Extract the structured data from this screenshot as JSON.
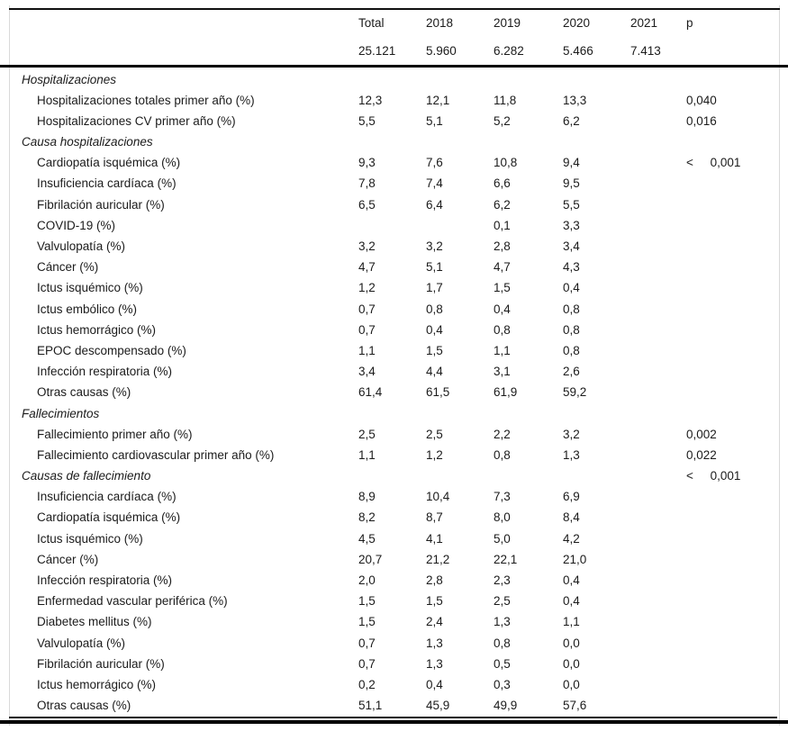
{
  "header": {
    "columns": [
      "Total",
      "2018",
      "2019",
      "2020",
      "2021",
      "p"
    ],
    "counts": [
      "25.121",
      "5.960",
      "6.282",
      "5.466",
      "7.413"
    ]
  },
  "rows": [
    {
      "type": "section",
      "label": "Hospitalizaciones",
      "values": [
        "",
        "",
        "",
        "",
        ""
      ],
      "p": ""
    },
    {
      "type": "item",
      "label": "Hospitalizaciones totales primer año (%)",
      "values": [
        "12,3",
        "12,1",
        "11,8",
        "13,3",
        ""
      ],
      "p": "0,040"
    },
    {
      "type": "item",
      "label": "Hospitalizaciones CV primer año (%)",
      "values": [
        "5,5",
        "5,1",
        "5,2",
        "6,2",
        ""
      ],
      "p": "0,016"
    },
    {
      "type": "section",
      "label": "Causa hospitalizaciones",
      "values": [
        "",
        "",
        "",
        "",
        ""
      ],
      "p": ""
    },
    {
      "type": "item",
      "label": "Cardiopatía isquémica (%)",
      "values": [
        "9,3",
        "7,6",
        "10,8",
        "9,4",
        ""
      ],
      "p": "<     0,001"
    },
    {
      "type": "item",
      "label": "Insuficiencia cardíaca (%)",
      "values": [
        "7,8",
        "7,4",
        "6,6",
        "9,5",
        ""
      ],
      "p": ""
    },
    {
      "type": "item",
      "label": "Fibrilación auricular (%)",
      "values": [
        "6,5",
        "6,4",
        "6,2",
        "5,5",
        ""
      ],
      "p": ""
    },
    {
      "type": "item",
      "label": "COVID-19 (%)",
      "values": [
        "",
        "",
        "0,1",
        "3,3",
        ""
      ],
      "p": ""
    },
    {
      "type": "item",
      "label": "Valvulopatía (%)",
      "values": [
        "3,2",
        "3,2",
        "2,8",
        "3,4",
        ""
      ],
      "p": ""
    },
    {
      "type": "item",
      "label": "Cáncer (%)",
      "values": [
        "4,7",
        "5,1",
        "4,7",
        "4,3",
        ""
      ],
      "p": ""
    },
    {
      "type": "item",
      "label": "Ictus isquémico (%)",
      "values": [
        "1,2",
        "1,7",
        "1,5",
        "0,4",
        ""
      ],
      "p": ""
    },
    {
      "type": "item",
      "label": "Ictus embólico (%)",
      "values": [
        "0,7",
        "0,8",
        "0,4",
        "0,8",
        ""
      ],
      "p": ""
    },
    {
      "type": "item",
      "label": "Ictus hemorrágico (%)",
      "values": [
        "0,7",
        "0,4",
        "0,8",
        "0,8",
        ""
      ],
      "p": ""
    },
    {
      "type": "item",
      "label": "EPOC descompensado (%)",
      "values": [
        "1,1",
        "1,5",
        "1,1",
        "0,8",
        ""
      ],
      "p": ""
    },
    {
      "type": "item",
      "label": "Infección respiratoria (%)",
      "values": [
        "3,4",
        "4,4",
        "3,1",
        "2,6",
        ""
      ],
      "p": ""
    },
    {
      "type": "item",
      "label": "Otras causas (%)",
      "values": [
        "61,4",
        "61,5",
        "61,9",
        "59,2",
        ""
      ],
      "p": ""
    },
    {
      "type": "section",
      "label": "Fallecimientos",
      "values": [
        "",
        "",
        "",
        "",
        ""
      ],
      "p": ""
    },
    {
      "type": "item",
      "label": "Fallecimiento primer año (%)",
      "values": [
        "2,5",
        "2,5",
        "2,2",
        "3,2",
        ""
      ],
      "p": "0,002"
    },
    {
      "type": "item",
      "label": "Fallecimiento cardiovascular primer año (%)",
      "values": [
        "1,1",
        "1,2",
        "0,8",
        "1,3",
        ""
      ],
      "p": "0,022"
    },
    {
      "type": "section",
      "label": "Causas de fallecimiento",
      "values": [
        "",
        "",
        "",
        "",
        ""
      ],
      "p": "<     0,001"
    },
    {
      "type": "item",
      "label": "Insuficiencia cardíaca (%)",
      "values": [
        "8,9",
        "10,4",
        "7,3",
        "6,9",
        ""
      ],
      "p": ""
    },
    {
      "type": "item",
      "label": "Cardiopatía isquémica (%)",
      "values": [
        "8,2",
        "8,7",
        "8,0",
        "8,4",
        ""
      ],
      "p": ""
    },
    {
      "type": "item",
      "label": "Ictus isquémico (%)",
      "values": [
        "4,5",
        "4,1",
        "5,0",
        "4,2",
        ""
      ],
      "p": ""
    },
    {
      "type": "item",
      "label": "Cáncer (%)",
      "values": [
        "20,7",
        "21,2",
        "22,1",
        "21,0",
        ""
      ],
      "p": ""
    },
    {
      "type": "item",
      "label": "Infección respiratoria (%)",
      "values": [
        "2,0",
        "2,8",
        "2,3",
        "0,4",
        ""
      ],
      "p": ""
    },
    {
      "type": "item",
      "label": "Enfermedad vascular periférica (%)",
      "values": [
        "1,5",
        "1,5",
        "2,5",
        "0,4",
        ""
      ],
      "p": ""
    },
    {
      "type": "item",
      "label": "Diabetes mellitus (%)",
      "values": [
        "1,5",
        "2,4",
        "1,3",
        "1,1",
        ""
      ],
      "p": ""
    },
    {
      "type": "item",
      "label": "Valvulopatía (%)",
      "values": [
        "0,7",
        "1,3",
        "0,8",
        "0,0",
        ""
      ],
      "p": ""
    },
    {
      "type": "item",
      "label": "Fibrilación auricular (%)",
      "values": [
        "0,7",
        "1,3",
        "0,5",
        "0,0",
        ""
      ],
      "p": ""
    },
    {
      "type": "item",
      "label": "Ictus hemorrágico (%)",
      "values": [
        "0,2",
        "0,4",
        "0,3",
        "0,0",
        ""
      ],
      "p": ""
    },
    {
      "type": "item",
      "label": "Otras causas (%)",
      "values": [
        "51,1",
        "45,9",
        "49,9",
        "57,6",
        ""
      ],
      "p": ""
    }
  ]
}
